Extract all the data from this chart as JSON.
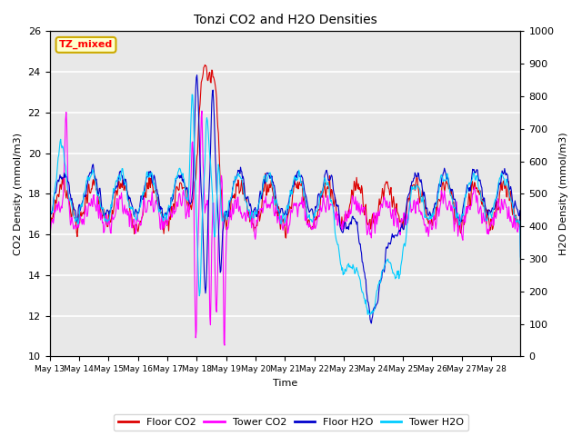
{
  "title": "Tonzi CO2 and H2O Densities",
  "xlabel": "Time",
  "ylabel_left": "CO2 Density (mmol/m3)",
  "ylabel_right": "H2O Density (mmol/m3)",
  "annotation_text": "TZ_mixed",
  "annotation_color": "red",
  "annotation_bg": "#ffffcc",
  "annotation_border": "#ccaa00",
  "ylim_left": [
    10,
    26
  ],
  "ylim_right": [
    0,
    1000
  ],
  "colors": {
    "floor_co2": "#dd0000",
    "tower_co2": "#ff00ff",
    "floor_h2o": "#0000cc",
    "tower_h2o": "#00ccff"
  },
  "legend_labels": [
    "Floor CO2",
    "Tower CO2",
    "Floor H2O",
    "Tower H2O"
  ],
  "x_tick_labels": [
    "May 13",
    "May 14",
    "May 15",
    "May 16",
    "May 17",
    "May 18",
    "May 19",
    "May 20",
    "May 21",
    "May 22",
    "May 23",
    "May 24",
    "May 25",
    "May 26",
    "May 27",
    "May 28"
  ],
  "background_color": "#e8e8e8",
  "grid_color": "white",
  "linewidth": 0.8,
  "figwidth": 6.4,
  "figheight": 4.8,
  "dpi": 100
}
